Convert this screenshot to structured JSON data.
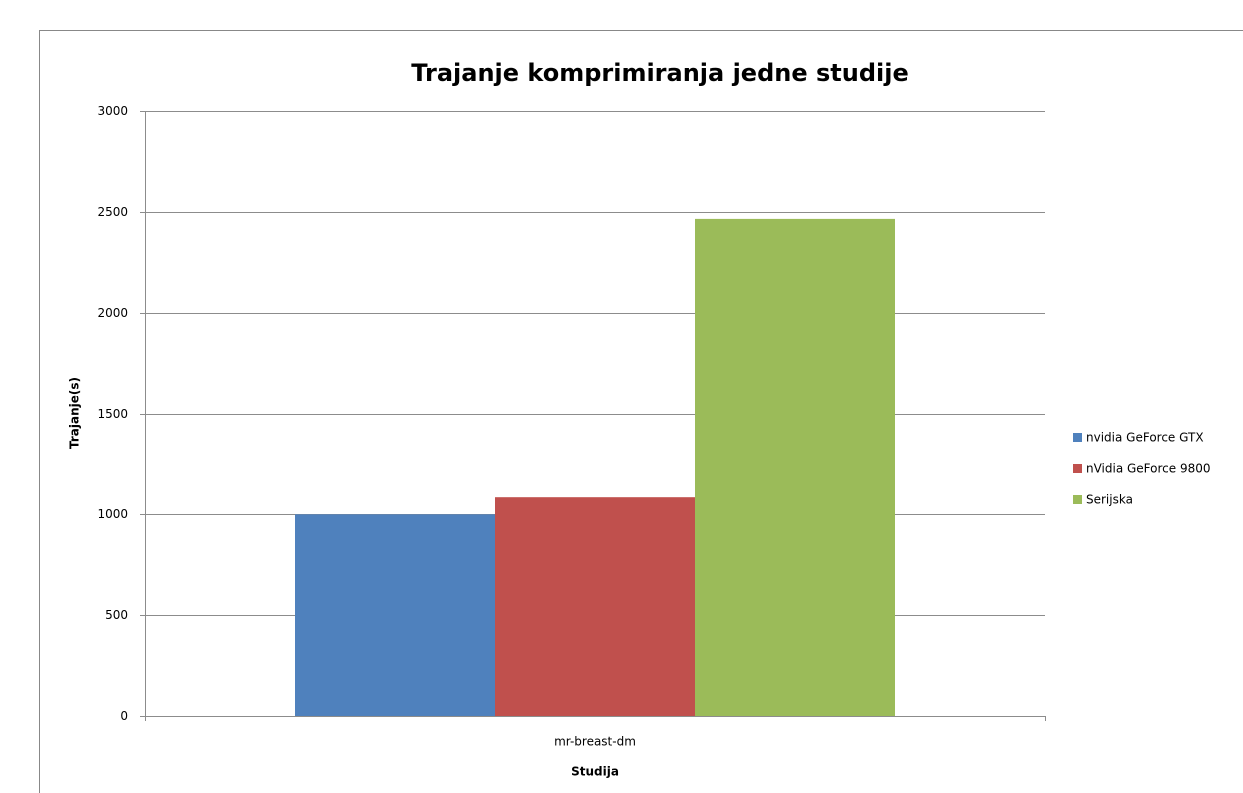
{
  "chart_data": {
    "type": "bar",
    "title": "Trajanje komprimiranja jedne studije",
    "x_label": "Studija",
    "y_label": "Trajanje(s)",
    "categories": [
      "mr-breast-dm"
    ],
    "series": [
      {
        "name": "nvidia GeForce GTX",
        "color": "#4f81bd",
        "values": [
          1000
        ]
      },
      {
        "name": "nVidia GeForce 9800",
        "color": "#c0504d",
        "values": [
          1085
        ]
      },
      {
        "name": "Serijska",
        "color": "#9bbb59",
        "values": [
          2465
        ]
      }
    ],
    "ylim": [
      0,
      3000
    ],
    "yticks": [
      0,
      500,
      1000,
      1500,
      2000,
      2500,
      3000
    ],
    "grid": true,
    "legend": "right"
  }
}
